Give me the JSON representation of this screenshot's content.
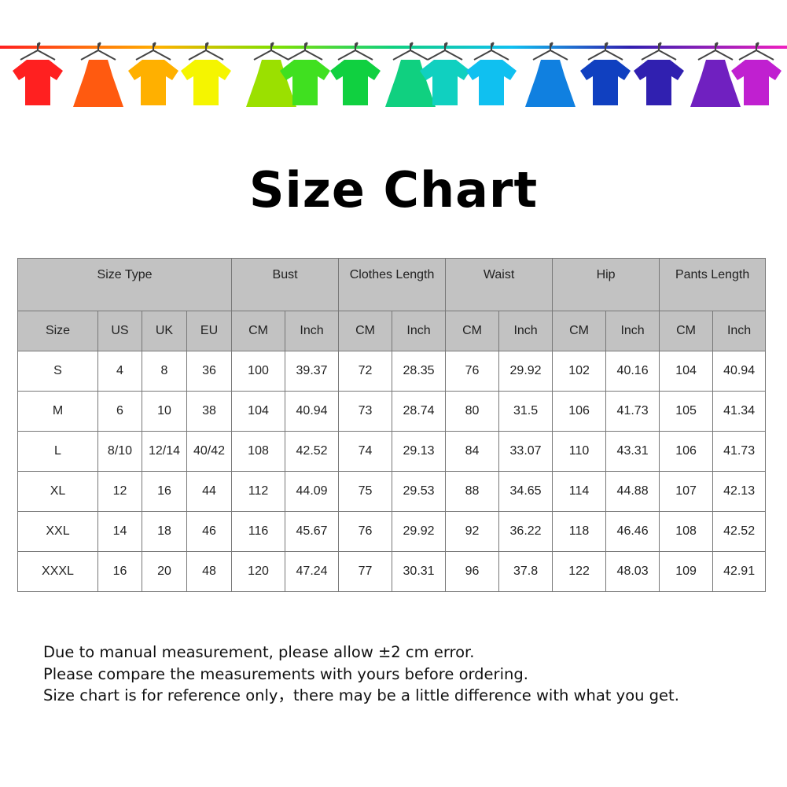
{
  "banner": {
    "icon": "clothes-hangers-rainbow",
    "colors": [
      "#ff2020",
      "#ff5a10",
      "#ffb000",
      "#f5f500",
      "#9be000",
      "#40e020",
      "#10d040",
      "#10d080",
      "#10d0c0",
      "#10c0f0",
      "#1080e0",
      "#1040c0",
      "#3020b0",
      "#7020c0",
      "#c020d0",
      "#f020c0"
    ]
  },
  "title": "Size Chart",
  "table": {
    "groups": [
      "Size Type",
      "Bust",
      "Clothes Length",
      "Waist",
      "Hip",
      "Pants Length"
    ],
    "subheaders": [
      "Size",
      "US",
      "UK",
      "EU",
      "CM",
      "Inch",
      "CM",
      "Inch",
      "CM",
      "Inch",
      "CM",
      "Inch",
      "CM",
      "Inch"
    ],
    "rows": [
      [
        "S",
        "4",
        "8",
        "36",
        "100",
        "39.37",
        "72",
        "28.35",
        "76",
        "29.92",
        "102",
        "40.16",
        "104",
        "40.94"
      ],
      [
        "M",
        "6",
        "10",
        "38",
        "104",
        "40.94",
        "73",
        "28.74",
        "80",
        "31.5",
        "106",
        "41.73",
        "105",
        "41.34"
      ],
      [
        "L",
        "8/10",
        "12/14",
        "40/42",
        "108",
        "42.52",
        "74",
        "29.13",
        "84",
        "33.07",
        "110",
        "43.31",
        "106",
        "41.73"
      ],
      [
        "XL",
        "12",
        "16",
        "44",
        "112",
        "44.09",
        "75",
        "29.53",
        "88",
        "34.65",
        "114",
        "44.88",
        "107",
        "42.13"
      ],
      [
        "XXL",
        "14",
        "18",
        "46",
        "116",
        "45.67",
        "76",
        "29.92",
        "92",
        "36.22",
        "118",
        "46.46",
        "108",
        "42.52"
      ],
      [
        "XXXL",
        "16",
        "20",
        "48",
        "120",
        "47.24",
        "77",
        "30.31",
        "96",
        "37.8",
        "122",
        "48.03",
        "109",
        "42.91"
      ]
    ]
  },
  "notes": [
    "Due to manual measurement, please allow ±2 cm error.",
    "Please compare the measurements with yours before ordering.",
    "Size chart is for reference only，there may be a little difference with what you get."
  ]
}
